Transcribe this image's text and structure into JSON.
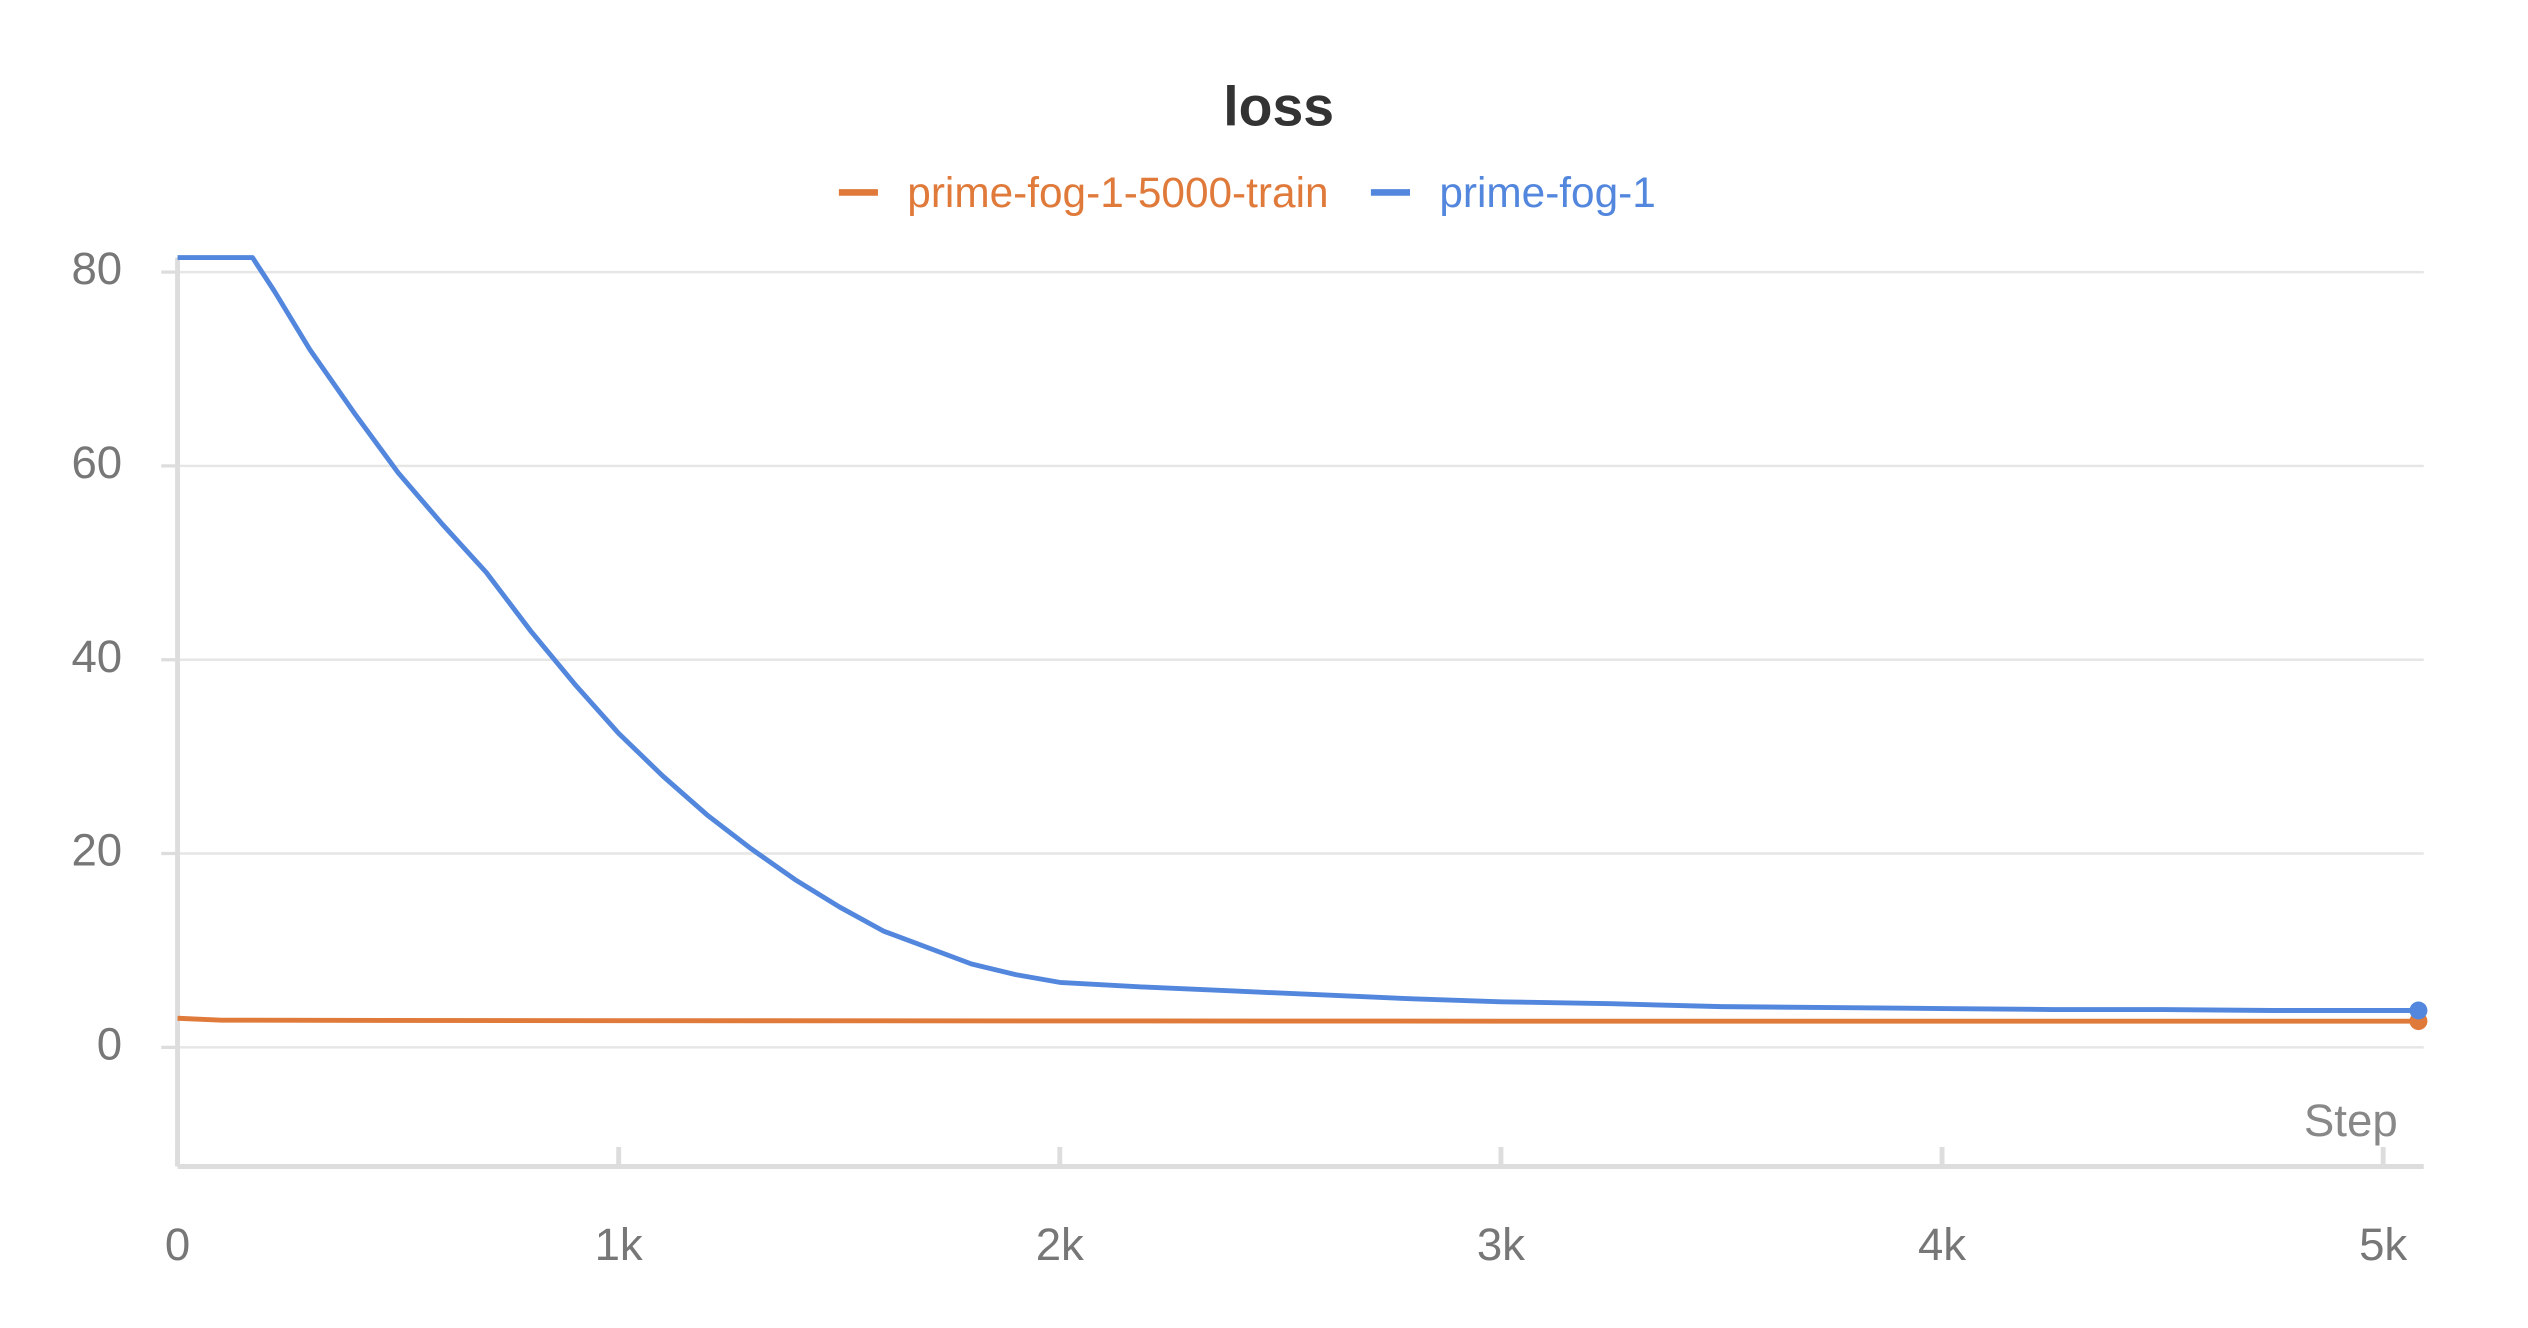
{
  "chart_data": {
    "type": "line",
    "title": "loss",
    "x_label": "Step",
    "xlim": [
      0,
      5092
    ],
    "ylim": [
      -12.3,
      81.5
    ],
    "xticks": [
      0,
      {
        "value": 1000,
        "label": "1k"
      },
      {
        "value": 2000,
        "label": "2k"
      },
      {
        "value": 3000,
        "label": "3k"
      },
      {
        "value": 4000,
        "label": "4k"
      },
      {
        "value": 5000,
        "label": "5k"
      }
    ],
    "yticks": [
      0,
      20,
      40,
      60,
      80
    ],
    "grid": true,
    "series": [
      {
        "name": "prime-fog-1-5000-train",
        "color": "#e07a3b",
        "x": [
          0,
          100,
          1000,
          3000,
          5080
        ],
        "values": [
          3.0,
          2.8,
          2.75,
          2.7,
          2.7
        ]
      },
      {
        "name": "prime-fog-1",
        "color": "#5387dd",
        "x": [
          0,
          170,
          220,
          300,
          400,
          500,
          600,
          700,
          800,
          900,
          1000,
          1100,
          1200,
          1300,
          1400,
          1500,
          1600,
          1700,
          1800,
          1900,
          2000,
          2200,
          2400,
          2600,
          2800,
          3000,
          3250,
          3500,
          3750,
          4000,
          4250,
          4500,
          4750,
          5080
        ],
        "values": [
          81.5,
          81.5,
          78,
          72,
          65.5,
          59.3,
          54,
          49,
          43,
          37.5,
          32.4,
          28,
          24,
          20.5,
          17.3,
          14.5,
          12,
          10.3,
          8.6,
          7.5,
          6.7,
          6.2,
          5.8,
          5.4,
          5.0,
          4.7,
          4.5,
          4.2,
          4.1,
          4.0,
          3.9,
          3.9,
          3.8,
          3.8
        ]
      }
    ]
  }
}
